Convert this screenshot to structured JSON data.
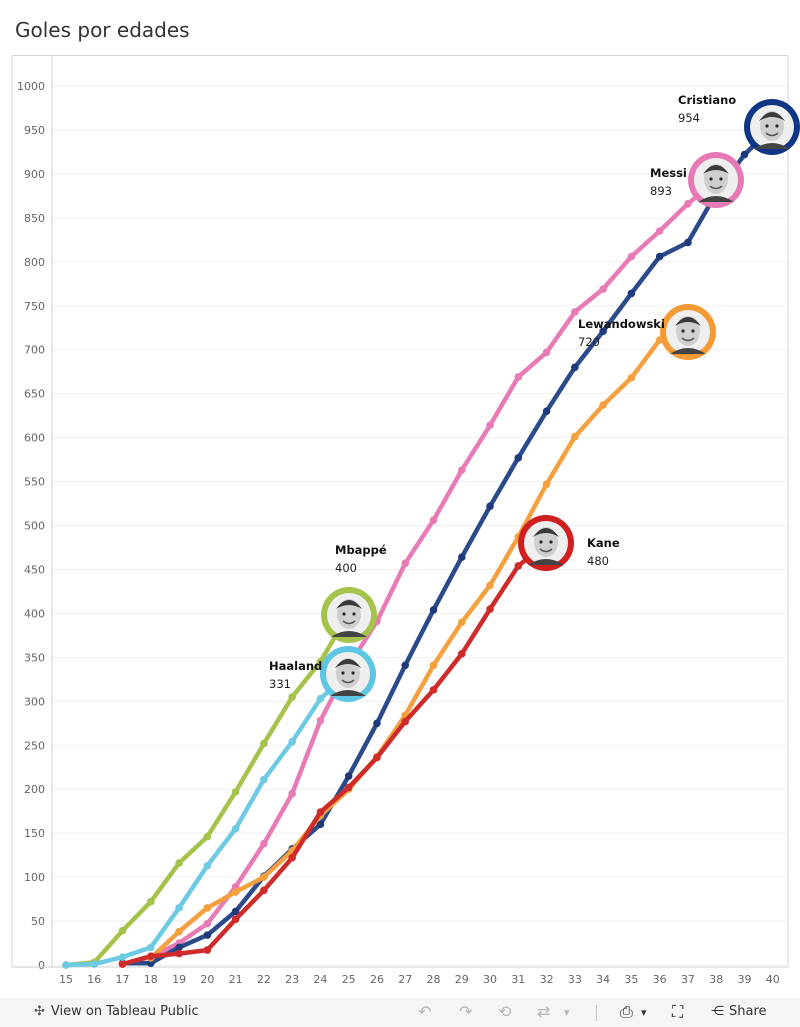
{
  "chart_data": {
    "type": "line",
    "title": "Goles por edades",
    "xlabel": "",
    "ylabel": "",
    "xlim": [
      15,
      40
    ],
    "ylim": [
      0,
      1000
    ],
    "x_ticks": [
      "15",
      "16",
      "17",
      "18",
      "19",
      "20",
      "21",
      "22",
      "23",
      "24",
      "25",
      "26",
      "27",
      "28",
      "29",
      "30",
      "31",
      "32",
      "33",
      "34",
      "35",
      "36",
      "37",
      "38",
      "39",
      "40"
    ],
    "y_ticks": [
      "0",
      "50",
      "100",
      "150",
      "200",
      "250",
      "300",
      "350",
      "400",
      "450",
      "500",
      "550",
      "600",
      "650",
      "700",
      "750",
      "800",
      "850",
      "900",
      "950",
      "1000"
    ],
    "grid": true,
    "series": [
      {
        "name": "Messi",
        "label": "Messi",
        "value_label": "893",
        "color": "#e87ab5",
        "marker_color": "#e87ab5",
        "points": [
          [
            17,
            1
          ],
          [
            18,
            9
          ],
          [
            19,
            25
          ],
          [
            20,
            47
          ],
          [
            21,
            89
          ],
          [
            22,
            138
          ],
          [
            23,
            195
          ],
          [
            24,
            278
          ],
          [
            25,
            340
          ],
          [
            26,
            391
          ],
          [
            27,
            457
          ],
          [
            28,
            506
          ],
          [
            29,
            563
          ],
          [
            30,
            614
          ],
          [
            31,
            669
          ],
          [
            32,
            697
          ],
          [
            33,
            743
          ],
          [
            34,
            769
          ],
          [
            35,
            806
          ],
          [
            36,
            835
          ],
          [
            37,
            866
          ],
          [
            38,
            893
          ]
        ]
      },
      {
        "name": "Cristiano",
        "label": "Cristiano",
        "value_label": "954",
        "color": "#2a4a8c",
        "marker_color": "#1f3a7a",
        "points": [
          [
            17,
            2
          ],
          [
            18,
            2
          ],
          [
            19,
            20
          ],
          [
            20,
            34
          ],
          [
            21,
            61
          ],
          [
            22,
            101
          ],
          [
            23,
            132
          ],
          [
            24,
            160
          ],
          [
            25,
            215
          ],
          [
            26,
            275
          ],
          [
            27,
            341
          ],
          [
            28,
            404
          ],
          [
            29,
            464
          ],
          [
            30,
            522
          ],
          [
            31,
            577
          ],
          [
            32,
            630
          ],
          [
            33,
            680
          ],
          [
            34,
            721
          ],
          [
            35,
            764
          ],
          [
            36,
            806
          ],
          [
            37,
            822
          ],
          [
            38,
            878
          ],
          [
            39,
            922
          ],
          [
            40,
            954
          ]
        ]
      },
      {
        "name": "Lewandowski",
        "label": "Lewandowski",
        "value_label": "720",
        "color": "#f4a03e",
        "marker_color": "#f4a03e",
        "points": [
          [
            18,
            8
          ],
          [
            19,
            38
          ],
          [
            20,
            65
          ],
          [
            21,
            83
          ],
          [
            22,
            100
          ],
          [
            23,
            130
          ],
          [
            24,
            170
          ],
          [
            25,
            200
          ],
          [
            26,
            237
          ],
          [
            27,
            284
          ],
          [
            28,
            341
          ],
          [
            29,
            390
          ],
          [
            30,
            432
          ],
          [
            31,
            487
          ],
          [
            32,
            547
          ],
          [
            33,
            601
          ],
          [
            34,
            637
          ],
          [
            35,
            668
          ],
          [
            36,
            711
          ],
          [
            37,
            720
          ]
        ]
      },
      {
        "name": "Kane",
        "label": "Kane",
        "value_label": "480",
        "color": "#cf2b2b",
        "marker_color": "#cf2b2b",
        "points": [
          [
            17,
            1
          ],
          [
            18,
            10
          ],
          [
            19,
            13
          ],
          [
            20,
            17
          ],
          [
            21,
            52
          ],
          [
            22,
            85
          ],
          [
            23,
            122
          ],
          [
            24,
            174
          ],
          [
            25,
            202
          ],
          [
            26,
            236
          ],
          [
            27,
            277
          ],
          [
            28,
            313
          ],
          [
            29,
            354
          ],
          [
            30,
            405
          ],
          [
            31,
            454
          ],
          [
            32,
            480
          ]
        ]
      },
      {
        "name": "Mbappé",
        "label": "Mbappé",
        "value_label": "400",
        "color": "#a5c24b",
        "marker_color": "#a5c24b",
        "points": [
          [
            15,
            0
          ],
          [
            16,
            3
          ],
          [
            17,
            39
          ],
          [
            18,
            72
          ],
          [
            19,
            116
          ],
          [
            20,
            146
          ],
          [
            21,
            197
          ],
          [
            22,
            252
          ],
          [
            23,
            305
          ],
          [
            24,
            345
          ],
          [
            25,
            400
          ]
        ]
      },
      {
        "name": "Haaland",
        "label": "Haaland",
        "value_label": "331",
        "color": "#6ccbe3",
        "marker_color": "#6ccbe3",
        "points": [
          [
            15,
            0
          ],
          [
            16,
            1
          ],
          [
            17,
            9
          ],
          [
            18,
            20
          ],
          [
            19,
            65
          ],
          [
            20,
            113
          ],
          [
            21,
            155
          ],
          [
            22,
            211
          ],
          [
            23,
            254
          ],
          [
            24,
            303
          ],
          [
            25,
            331
          ]
        ]
      }
    ]
  },
  "footer": {
    "view_label": "View on Tableau Public",
    "share_label": "Share"
  }
}
